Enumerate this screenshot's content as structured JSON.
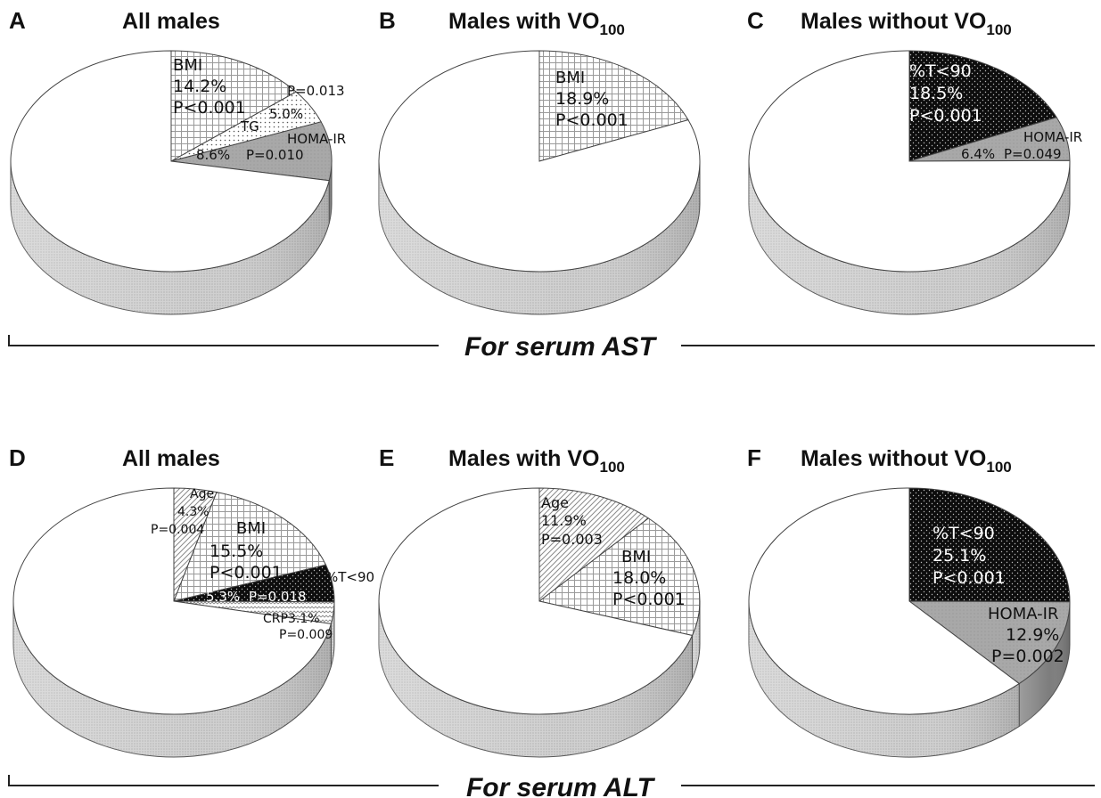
{
  "sections": [
    {
      "label": "For serum AST"
    },
    {
      "label": "For serum ALT"
    }
  ],
  "chart_data": [
    {
      "type": "pie",
      "panel": "A",
      "title": "All males",
      "slices": [
        {
          "label": "BMI",
          "value": 14.2,
          "value_text": "14.2%",
          "p": "P<0.001",
          "pattern": "grid"
        },
        {
          "label": "TG",
          "value": 5.0,
          "value_text": "5.0%",
          "p": "P=0.013",
          "pattern": "dots-light"
        },
        {
          "label": "HOMA-IR",
          "value": 8.6,
          "value_text": "8.6%",
          "p": "P=0.010",
          "pattern": "gray"
        }
      ]
    },
    {
      "type": "pie",
      "panel": "B",
      "title": "Males with VO",
      "title_sub": "100",
      "slices": [
        {
          "label": "BMI",
          "value": 18.9,
          "value_text": "18.9%",
          "p": "P<0.001",
          "pattern": "grid"
        }
      ]
    },
    {
      "type": "pie",
      "panel": "C",
      "title": "Males without VO",
      "title_sub": "100",
      "slices": [
        {
          "label": "%T<90",
          "value": 18.5,
          "value_text": "18.5%",
          "p": "P<0.001",
          "pattern": "black-dots"
        },
        {
          "label": "HOMA-IR",
          "value": 6.4,
          "value_text": "6.4%",
          "p": "P=0.049",
          "pattern": "gray"
        }
      ]
    },
    {
      "type": "pie",
      "panel": "D",
      "title": "All males",
      "slices": [
        {
          "label": "Age",
          "value": 4.3,
          "value_text": "4.3%",
          "p": "P=0.004",
          "pattern": "diag"
        },
        {
          "label": "BMI",
          "value": 15.5,
          "value_text": "15.5%",
          "p": "P<0.001",
          "pattern": "grid"
        },
        {
          "label": "%T<90",
          "value": 5.3,
          "value_text": "5.3%",
          "p": "P=0.018",
          "pattern": "black-dots"
        },
        {
          "label": "CRP",
          "value": 3.1,
          "value_text": "3.1%",
          "p": "P=0.009",
          "pattern": "zigzag"
        }
      ]
    },
    {
      "type": "pie",
      "panel": "E",
      "title": "Males with VO",
      "title_sub": "100",
      "slices": [
        {
          "label": "Age",
          "value": 11.9,
          "value_text": "11.9%",
          "p": "P=0.003",
          "pattern": "diag"
        },
        {
          "label": "BMI",
          "value": 18.0,
          "value_text": "18.0%",
          "p": "P<0.001",
          "pattern": "grid"
        }
      ]
    },
    {
      "type": "pie",
      "panel": "F",
      "title": "Males without VO",
      "title_sub": "100",
      "slices": [
        {
          "label": "%T<90",
          "value": 25.1,
          "value_text": "25.1%",
          "p": "P<0.001",
          "pattern": "black-dots"
        },
        {
          "label": "HOMA-IR",
          "value": 12.9,
          "value_text": "12.9%",
          "p": "P=0.002",
          "pattern": "gray"
        }
      ]
    }
  ]
}
